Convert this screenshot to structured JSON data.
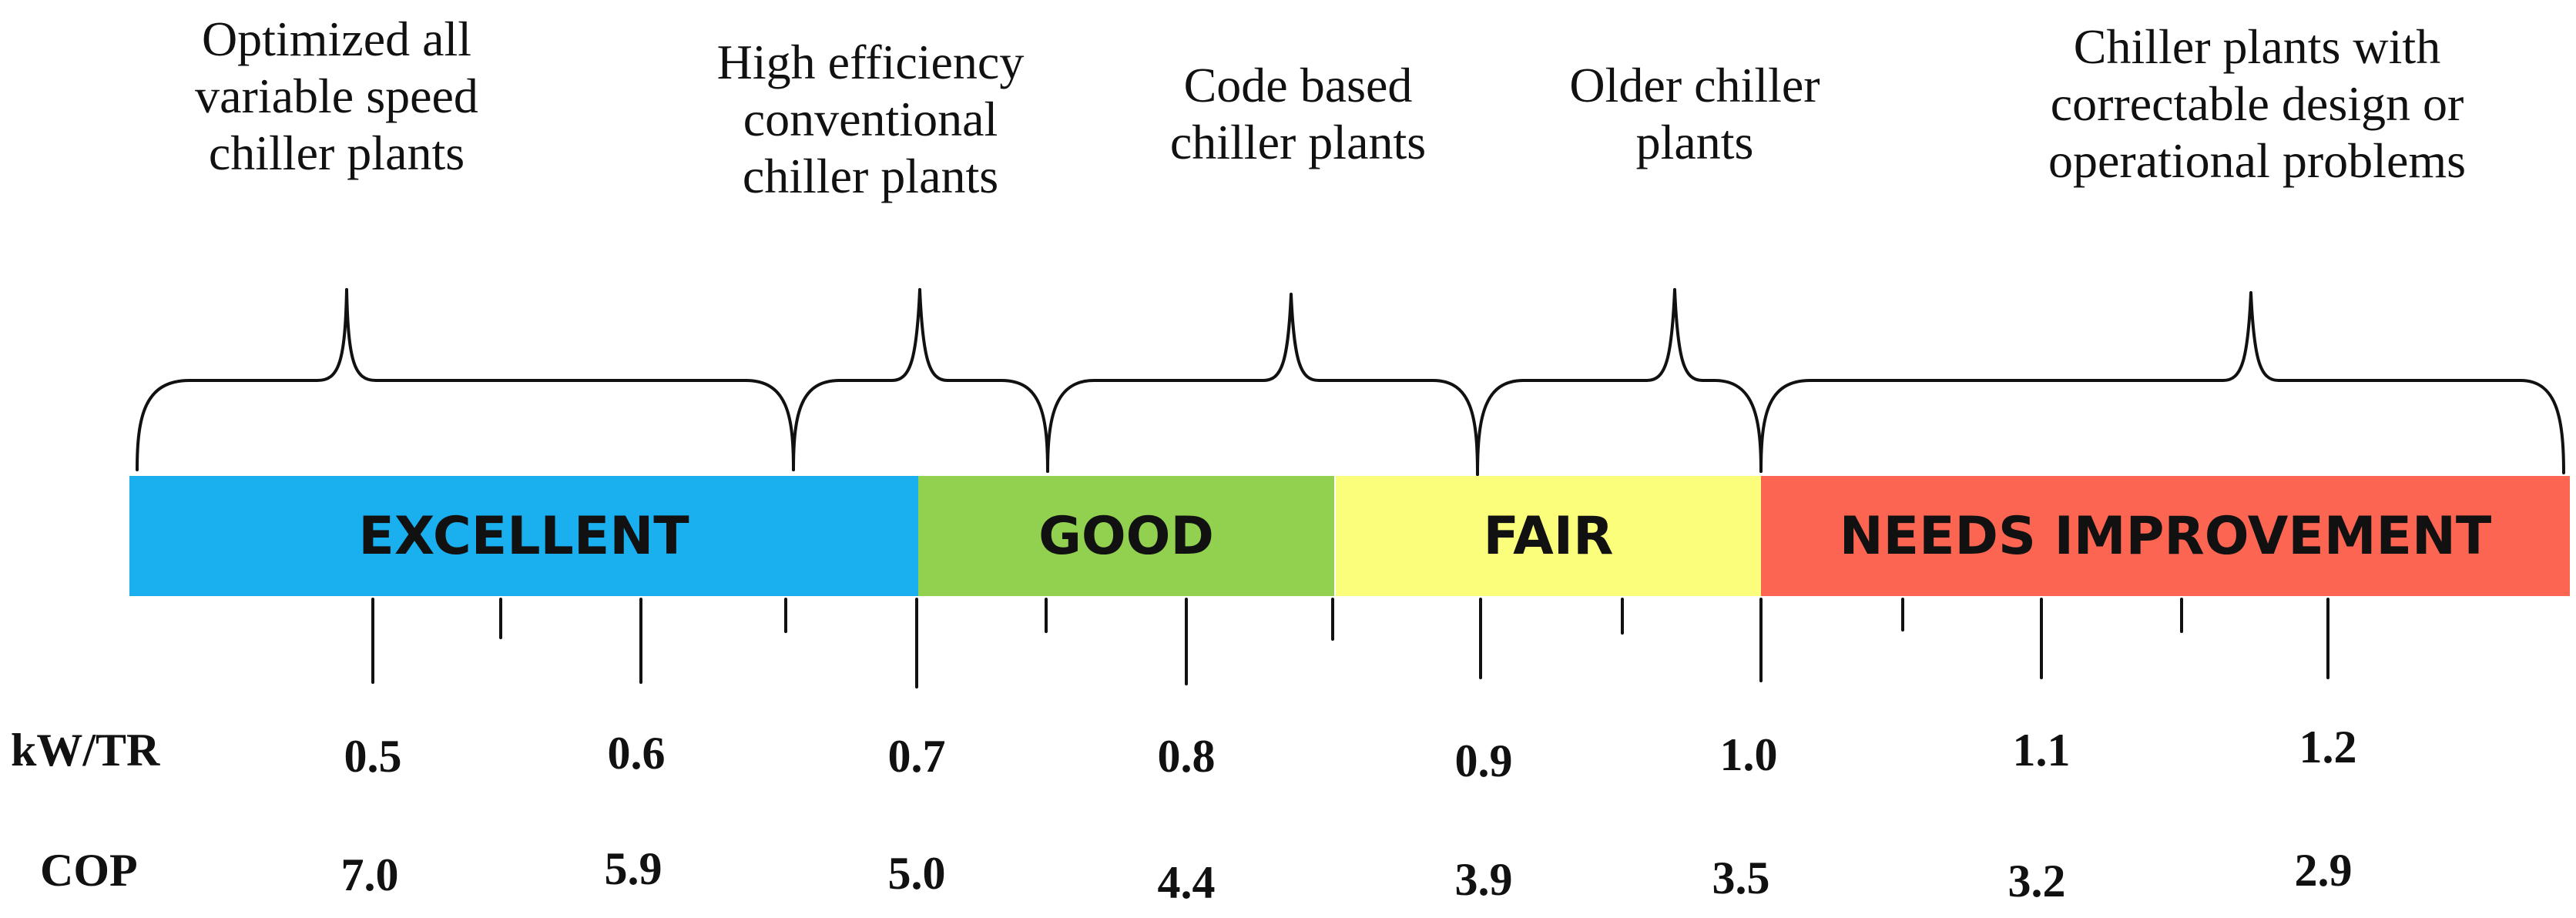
{
  "categories": [
    {
      "label": "Optimized all\nvariable speed\nchiller plants"
    },
    {
      "label": "High efficiency\nconventional\nchiller plants"
    },
    {
      "label": "Code based\nchiller plants"
    },
    {
      "label": "Older chiller\nplants"
    },
    {
      "label": "Chiller plants with\ncorrectable design or\noperational problems"
    }
  ],
  "ratings": [
    {
      "label": "EXCELLENT",
      "color": "#1aafee"
    },
    {
      "label": "GOOD",
      "color": "#92d050"
    },
    {
      "label": "FAIR",
      "color": "#fbfe7b"
    },
    {
      "label": "NEEDS IMPROVEMENT",
      "color": "#fc6552"
    }
  ],
  "rows": {
    "kw_tr_label": "kW/TR",
    "cop_label": "COP"
  },
  "scale": [
    {
      "kw_tr": "0.5",
      "cop": "7.0"
    },
    {
      "kw_tr": "0.6",
      "cop": "5.9"
    },
    {
      "kw_tr": "0.7",
      "cop": "5.0"
    },
    {
      "kw_tr": "0.8",
      "cop": "4.4"
    },
    {
      "kw_tr": "0.9",
      "cop": "3.9"
    },
    {
      "kw_tr": "1.0",
      "cop": "3.5"
    },
    {
      "kw_tr": "1.1",
      "cop": "3.2"
    },
    {
      "kw_tr": "1.2",
      "cop": "2.9"
    }
  ]
}
